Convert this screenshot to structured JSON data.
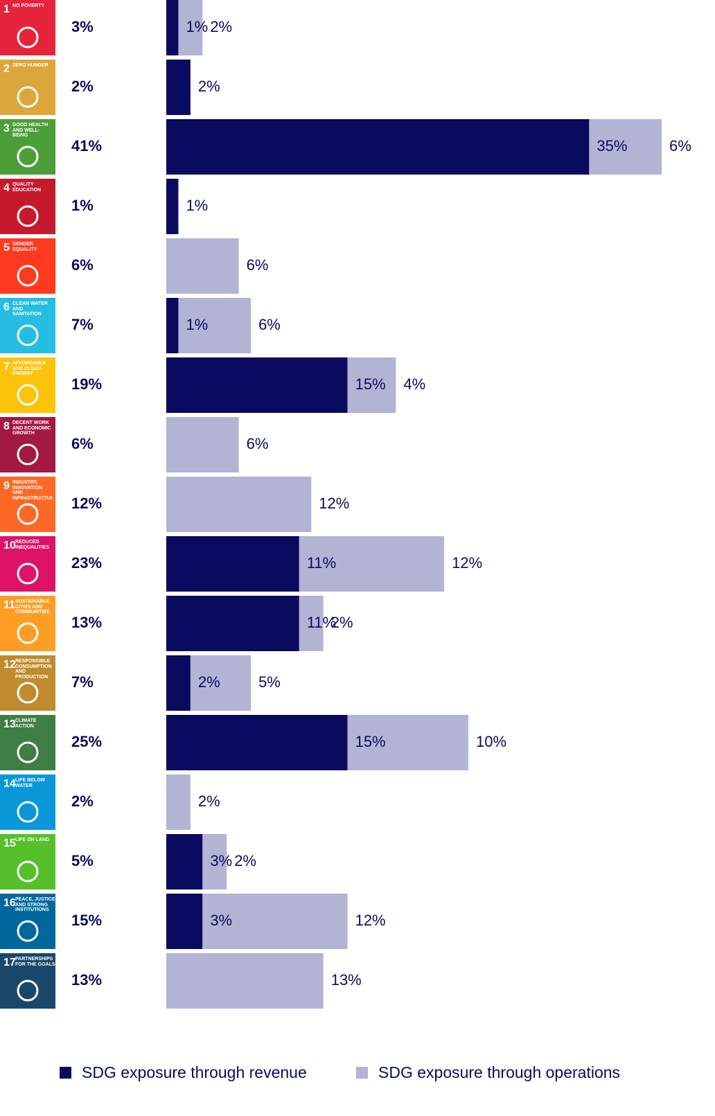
{
  "chart_data": {
    "type": "stacked-bar",
    "orientation": "horizontal",
    "category_numbers": [
      "1",
      "2",
      "3",
      "4",
      "5",
      "6",
      "7",
      "8",
      "9",
      "10",
      "11",
      "12",
      "13",
      "14",
      "15",
      "16",
      "17"
    ],
    "categories": [
      "NO POVERTY",
      "ZERO HUNGER",
      "GOOD HEALTH AND WELL-BEING",
      "QUALITY EDUCATION",
      "GENDER EQUALITY",
      "CLEAN WATER AND SANITATION",
      "AFFORDABLE AND CLEAN ENERGY",
      "DECENT WORK AND ECONOMIC GROWTH",
      "INDUSTRY, INNOVATION AND INFRASTRUCTURE",
      "REDUCED INEQUALITIES",
      "SUSTAINABLE CITIES AND COMMUNITIES",
      "RESPONSIBLE CONSUMPTION AND PRODUCTION",
      "CLIMATE ACTION",
      "LIFE BELOW WATER",
      "LIFE ON LAND",
      "PEACE, JUSTICE AND STRONG INSTITUTIONS",
      "PARTNERSHIPS FOR THE GOALS"
    ],
    "category_colors": [
      "#e5243b",
      "#dda63a",
      "#4c9f38",
      "#c5192d",
      "#ff3a21",
      "#26bde2",
      "#fcc30b",
      "#a21942",
      "#fd6925",
      "#dd1367",
      "#fd9d24",
      "#bf8b2e",
      "#3f7e44",
      "#0a97d9",
      "#56c02b",
      "#00689d",
      "#19486a"
    ],
    "totals": [
      3,
      2,
      41,
      1,
      6,
      7,
      19,
      6,
      12,
      23,
      13,
      7,
      25,
      2,
      5,
      15,
      13
    ],
    "total_labels": [
      "3%",
      "2%",
      "41%",
      "1%",
      "6%",
      "7%",
      "19%",
      "6%",
      "12%",
      "23%",
      "13%",
      "7%",
      "25%",
      "2%",
      "5%",
      "15%",
      "13%"
    ],
    "series": [
      {
        "name": "SDG exposure through revenue",
        "color": "#0a0a5e",
        "values": [
          1,
          2,
          35,
          1,
          null,
          1,
          15,
          null,
          null,
          11,
          11,
          2,
          15,
          null,
          3,
          3,
          null
        ],
        "value_labels": [
          "1%",
          "2%",
          "35%",
          "1%",
          null,
          "1%",
          "15%",
          null,
          null,
          "11%",
          "11%",
          "2%",
          "15%",
          null,
          "3%",
          "3%",
          null
        ]
      },
      {
        "name": "SDG exposure through operations",
        "color": "#b3b3d4",
        "values": [
          2,
          null,
          6,
          null,
          6,
          6,
          4,
          6,
          12,
          12,
          2,
          5,
          10,
          2,
          2,
          12,
          13
        ],
        "value_labels": [
          "2%",
          null,
          "6%",
          null,
          "6%",
          "6%",
          "4%",
          "6%",
          "12%",
          "12%",
          "2%",
          "5%",
          "10%",
          "2%",
          "2%",
          "12%",
          "13%"
        ]
      }
    ],
    "xlim": [
      0,
      41
    ]
  }
}
